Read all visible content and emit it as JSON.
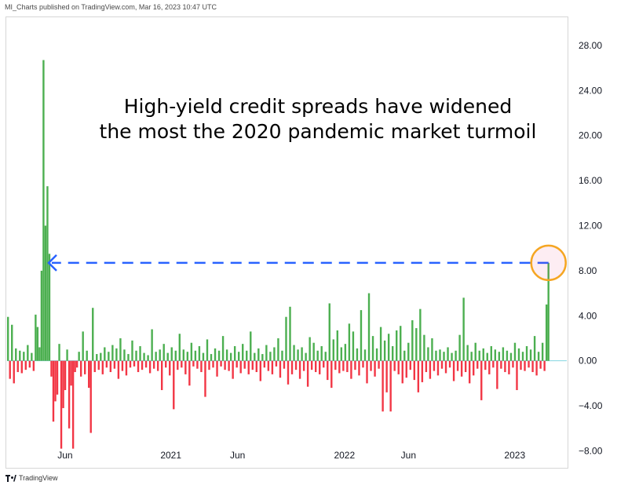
{
  "header": {
    "publisher_text": "MI_Charts published on TradingView.com, Mar 16, 2023 10:47 UTC"
  },
  "footer": {
    "brand": "TradingView"
  },
  "chart_data": {
    "type": "bar",
    "title": "High-yield credit spreads have widened",
    "subtitle": "the most the 2020 pandemic market turmoil",
    "xlabel": "",
    "ylabel": "",
    "ylim": [
      -9.5,
      30.5
    ],
    "grid": false,
    "colors": {
      "positive": "#4caf50",
      "negative": "#f23645",
      "zero_line": "#82d4e0",
      "arrow": "#2962ff",
      "highlight": "#f5a623"
    },
    "y_ticks": [
      "28.00",
      "24.00",
      "20.00",
      "16.00",
      "12.00",
      "8.00",
      "4.00",
      "0.00",
      "−4.00",
      "−8.00"
    ],
    "x_ticks": [
      "Jun",
      "2021",
      "Jun",
      "2022",
      "Jun",
      "2023"
    ],
    "annotations": [
      "dashed arrow from latest spike (~8.7) back to March 2020 level",
      "circle highlighting latest spike"
    ],
    "series": [
      {
        "values": [
          3.9,
          -1.6,
          3.2,
          -2.0,
          1.1,
          -1.0,
          0.9,
          -1.1,
          0.8,
          -0.8,
          1.4,
          -0.6,
          0.7,
          -0.9,
          4.1,
          3.0,
          1.2,
          8.0,
          26.7,
          12.0,
          15.5,
          9.5,
          -1.4,
          -5.4,
          -3.6,
          -3.0,
          1.5,
          -7.8,
          -4.2,
          -2.6,
          1.0,
          -6.0,
          -2.2,
          -7.8,
          -1.0,
          -0.6,
          0.8,
          -1.4,
          2.6,
          -1.2,
          0.9,
          -2.4,
          -6.4,
          4.7,
          -1.0,
          0.6,
          -0.8,
          0.7,
          -1.2,
          1.2,
          -0.6,
          0.8,
          -1.0,
          1.4,
          -0.7,
          1.1,
          -1.6,
          2.0,
          -0.9,
          1.0,
          -1.3,
          0.6,
          -0.6,
          1.8,
          -0.5,
          0.9,
          -1.0,
          1.3,
          -0.8,
          0.7,
          -0.6,
          0.5,
          -1.1,
          2.8,
          -0.7,
          0.8,
          -0.9,
          1.0,
          -2.6,
          1.5,
          -0.6,
          0.7,
          -1.3,
          1.2,
          -4.3,
          0.9,
          -0.8,
          2.4,
          -0.6,
          1.0,
          -1.2,
          0.8,
          -2.2,
          1.6,
          -0.5,
          0.9,
          -0.7,
          1.3,
          -1.0,
          0.7,
          -3.2,
          1.9,
          -0.8,
          0.6,
          -0.6,
          1.1,
          -1.4,
          0.9,
          -0.5,
          2.2,
          -0.8,
          1.0,
          -0.9,
          0.7,
          -1.6,
          1.3,
          -0.6,
          0.8,
          -1.1,
          1.5,
          -0.7,
          0.9,
          -1.2,
          2.6,
          -0.8,
          0.7,
          -1.0,
          1.1,
          -1.8,
          0.6,
          -0.6,
          1.4,
          -0.9,
          0.8,
          -1.2,
          1.2,
          -0.5,
          2.0,
          -1.5,
          0.9,
          -0.7,
          3.9,
          -2.1,
          4.8,
          -1.2,
          1.4,
          -0.8,
          1.0,
          -1.6,
          1.2,
          -0.9,
          0.7,
          -2.3,
          2.1,
          -0.8,
          1.6,
          -1.0,
          0.9,
          -1.2,
          1.3,
          -0.6,
          0.8,
          -1.7,
          5.1,
          -2.4,
          1.9,
          -0.8,
          2.7,
          -1.1,
          1.2,
          -0.9,
          1.5,
          -1.0,
          3.3,
          -1.6,
          2.6,
          -0.8,
          1.1,
          -1.3,
          4.5,
          -0.6,
          1.0,
          -2.0,
          6.0,
          -0.9,
          2.2,
          -1.4,
          1.1,
          -0.7,
          3.0,
          -4.5,
          1.8,
          -2.8,
          2.4,
          -4.5,
          1.3,
          -0.9,
          2.7,
          -1.2,
          3.1,
          -2.0,
          0.9,
          -1.5,
          1.6,
          -0.8,
          3.6,
          -1.7,
          2.9,
          -2.8,
          4.6,
          -1.9,
          2.3,
          -1.0,
          1.2,
          -1.6,
          2.0,
          -0.9,
          0.9,
          -1.3,
          1.0,
          -0.7,
          0.8,
          -1.1,
          1.2,
          -0.6,
          0.7,
          -1.8,
          0.9,
          -0.9,
          2.3,
          -1.4,
          5.6,
          -1.0,
          1.4,
          -2.0,
          0.8,
          -1.3,
          1.6,
          -0.7,
          0.9,
          -3.5,
          1.1,
          -0.8,
          0.7,
          -1.2,
          1.3,
          -0.6,
          1.0,
          -2.5,
          0.8,
          -0.7,
          1.2,
          -1.0,
          0.9,
          -1.2,
          0.7,
          -0.6,
          1.6,
          -2.6,
          1.1,
          -0.8,
          0.8,
          -0.9,
          1.3,
          -0.6,
          1.0,
          -1.0,
          2.2,
          -1.3,
          0.8,
          -0.7,
          1.6,
          -0.9,
          5.0,
          8.7
        ]
      }
    ]
  }
}
